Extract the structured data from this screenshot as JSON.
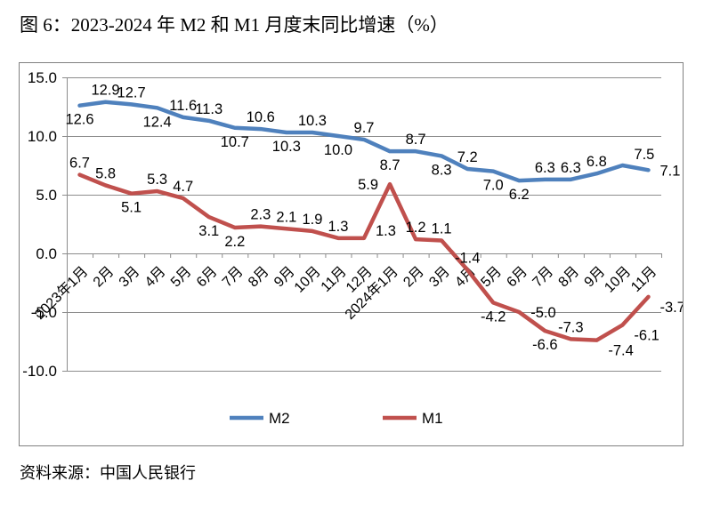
{
  "title": "图 6：2023-2024 年 M2 和 M1 月度末同比增速（%）",
  "source": "资料来源：中国人民银行",
  "chart_data": {
    "type": "line",
    "title": "2023-2024 年 M2 和 M1 月度末同比增速（%）",
    "categories": [
      "2023年1月",
      "2月",
      "3月",
      "4月",
      "5月",
      "6月",
      "7月",
      "8月",
      "9月",
      "10月",
      "11月",
      "12月",
      "2024年1月",
      "2月",
      "3月",
      "4月",
      "5月",
      "6月",
      "7月",
      "8月",
      "9月",
      "10月",
      "11月"
    ],
    "series": [
      {
        "name": "M2",
        "color": "#4F81BD",
        "values": [
          12.6,
          12.9,
          12.7,
          12.4,
          11.6,
          11.3,
          10.7,
          10.6,
          10.3,
          10.3,
          10.0,
          9.7,
          8.7,
          8.7,
          8.3,
          7.2,
          7.0,
          6.2,
          6.3,
          6.3,
          6.8,
          7.5,
          7.1
        ],
        "label_side": [
          "b",
          "a",
          "a",
          "b",
          "a",
          "a",
          "b",
          "a",
          "b",
          "a",
          "b",
          "a",
          "b",
          "a",
          "b",
          "a",
          "b",
          "b",
          "a",
          "a",
          "a",
          "ar",
          "r"
        ]
      },
      {
        "name": "M1",
        "color": "#C0504D",
        "values": [
          6.7,
          5.8,
          5.1,
          5.3,
          4.7,
          3.1,
          2.2,
          2.3,
          2.1,
          1.9,
          1.3,
          1.3,
          5.9,
          1.2,
          1.1,
          -1.4,
          -4.2,
          -5.0,
          -6.6,
          -7.3,
          -7.4,
          -6.1,
          -3.7
        ],
        "label_side": [
          "a",
          "a",
          "b",
          "a",
          "a",
          "b",
          "b",
          "a",
          "a",
          "a",
          "a",
          "ra",
          "l",
          "a",
          "a",
          "a",
          "b",
          "r",
          "b",
          "a",
          "br",
          "br",
          "br"
        ]
      }
    ],
    "ylim": [
      -10,
      15
    ],
    "ytick_step": 5,
    "ytick_labels": [
      "15.0",
      "10.0",
      "5.0",
      "0.0",
      "-5.0",
      "-10.0"
    ],
    "grid": true,
    "legend_position": "bottom",
    "colors": {
      "gridline": "#8C8C8C",
      "axis": "#8C8C8C",
      "chart_border": "#808080",
      "label_text": "#000000"
    }
  }
}
